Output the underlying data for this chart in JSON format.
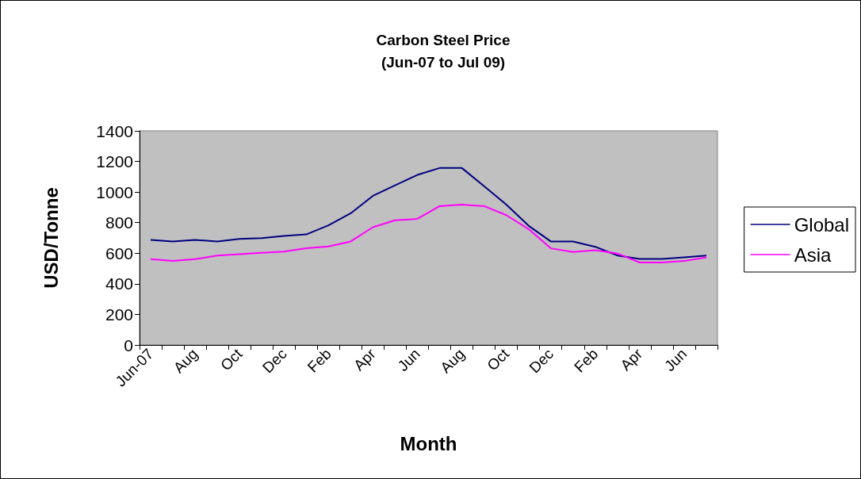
{
  "chart_data": {
    "type": "line",
    "title": "Carbon Steel Price\n(Jun-07 to Jul 09)",
    "xlabel": "Month",
    "ylabel": "USD/Tonne",
    "categories": [
      "Jun-07",
      null,
      "Aug",
      null,
      "Oct",
      null,
      "Dec",
      null,
      "Feb",
      null,
      "Apr",
      null,
      "Jun",
      null,
      "Aug",
      null,
      "Oct",
      null,
      "Dec",
      null,
      "Feb",
      null,
      "Apr",
      null,
      "Jun",
      null
    ],
    "series": [
      {
        "name": "Global",
        "color": "#000080",
        "values": [
          687,
          677,
          687,
          677,
          694,
          699,
          713,
          723,
          782,
          861,
          975,
          1044,
          1112,
          1157,
          1157,
          1038,
          918,
          780,
          677,
          677,
          642,
          585,
          563,
          563,
          573,
          584
        ]
      },
      {
        "name": "Asia",
        "color": "#ff00ff",
        "values": [
          561,
          549,
          561,
          585,
          594,
          603,
          611,
          632,
          644,
          677,
          770,
          815,
          825,
          908,
          918,
          908,
          849,
          758,
          632,
          608,
          620,
          598,
          539,
          539,
          549,
          573
        ]
      }
    ],
    "ylim": [
      0,
      1400
    ],
    "yticks": [
      0,
      200,
      400,
      600,
      800,
      1000,
      1200,
      1400
    ],
    "grid": false,
    "legend": "right",
    "marker": "none",
    "line_style": "solid"
  }
}
